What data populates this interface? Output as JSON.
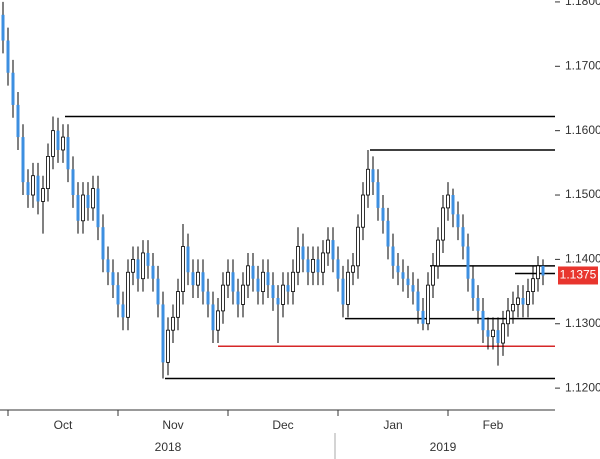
{
  "chart_data": {
    "type": "candlestick",
    "up_color": "#ffffff",
    "down_color": "#3d8fe0",
    "wick_color": "#000000",
    "ylim": [
      1.1166,
      1.1803
    ],
    "yticks": [
      {
        "value": 1.12,
        "label": "1.1200"
      },
      {
        "value": 1.13,
        "label": "1.1300"
      },
      {
        "value": 1.14,
        "label": "1.1400"
      },
      {
        "value": 1.15,
        "label": "1.1500"
      },
      {
        "value": 1.16,
        "label": "1.1600"
      },
      {
        "value": 1.17,
        "label": "1.1700"
      },
      {
        "value": 1.18,
        "label": "1.1800"
      }
    ],
    "years": [
      "2018",
      "2019"
    ],
    "last_price": 1.1375,
    "last_price_color": "#e8352e",
    "levels": [
      {
        "value": 1.1622,
        "color": "#000000"
      },
      {
        "value": 1.157,
        "color": "#000000"
      },
      {
        "value": 1.139,
        "color": "#000000"
      },
      {
        "value": 1.1378,
        "color": "#000000"
      },
      {
        "value": 1.1308,
        "color": "#000000"
      },
      {
        "value": 1.1265,
        "color": "#d62728"
      },
      {
        "value": 1.1215,
        "color": "#000000"
      }
    ],
    "categories": [
      null,
      null,
      null,
      null,
      null,
      null,
      null,
      null,
      null,
      null,
      null,
      null,
      "Oct",
      null,
      null,
      null,
      null,
      null,
      null,
      null,
      null,
      null,
      null,
      null,
      null,
      null,
      null,
      null,
      null,
      null,
      null,
      null,
      null,
      null,
      "Nov",
      null,
      null,
      null,
      null,
      null,
      null,
      null,
      null,
      null,
      null,
      null,
      null,
      null,
      null,
      null,
      null,
      null,
      null,
      null,
      null,
      null,
      "Dec",
      null,
      null,
      null,
      null,
      null,
      null,
      null,
      null,
      null,
      null,
      null,
      null,
      null,
      null,
      null,
      null,
      null,
      null,
      null,
      null,
      null,
      "Jan",
      null,
      null,
      null,
      null,
      null,
      null,
      null,
      null,
      null,
      null,
      null,
      null,
      null,
      null,
      null,
      null,
      null,
      null,
      null,
      "Feb",
      null,
      null,
      null,
      null,
      null,
      null,
      null,
      null,
      null,
      null
    ],
    "ohlc": [
      [
        1.178,
        1.18,
        1.172,
        1.174
      ],
      [
        1.174,
        1.176,
        1.167,
        1.169
      ],
      [
        1.169,
        1.171,
        1.162,
        1.164
      ],
      [
        1.164,
        1.166,
        1.157,
        1.159
      ],
      [
        1.159,
        1.161,
        1.15,
        1.152
      ],
      [
        1.152,
        1.154,
        1.148,
        1.15
      ],
      [
        1.15,
        1.155,
        1.148,
        1.153
      ],
      [
        1.153,
        1.155,
        1.147,
        1.149
      ],
      [
        1.149,
        1.153,
        1.144,
        1.151
      ],
      [
        1.151,
        1.158,
        1.149,
        1.156
      ],
      [
        1.156,
        1.1622,
        1.154,
        1.16
      ],
      [
        1.16,
        1.162,
        1.155,
        1.157
      ],
      [
        1.157,
        1.161,
        1.155,
        1.159
      ],
      [
        1.159,
        1.161,
        1.152,
        1.154
      ],
      [
        1.154,
        1.156,
        1.148,
        1.15
      ],
      [
        1.15,
        1.152,
        1.144,
        1.146
      ],
      [
        1.146,
        1.152,
        1.144,
        1.15
      ],
      [
        1.15,
        1.152,
        1.146,
        1.148
      ],
      [
        1.148,
        1.153,
        1.146,
        1.151
      ],
      [
        1.151,
        1.153,
        1.143,
        1.145
      ],
      [
        1.145,
        1.147,
        1.138,
        1.14
      ],
      [
        1.14,
        1.142,
        1.136,
        1.138
      ],
      [
        1.138,
        1.14,
        1.134,
        1.136
      ],
      [
        1.136,
        1.138,
        1.131,
        1.133
      ],
      [
        1.133,
        1.135,
        1.129,
        1.131
      ],
      [
        1.131,
        1.14,
        1.129,
        1.138
      ],
      [
        1.138,
        1.142,
        1.136,
        1.14
      ],
      [
        1.14,
        1.142,
        1.135,
        1.137
      ],
      [
        1.137,
        1.143,
        1.135,
        1.141
      ],
      [
        1.141,
        1.143,
        1.137,
        1.139
      ],
      [
        1.139,
        1.141,
        1.135,
        1.137
      ],
      [
        1.137,
        1.139,
        1.131,
        1.133
      ],
      [
        1.133,
        1.135,
        1.1215,
        1.124
      ],
      [
        1.124,
        1.131,
        1.122,
        1.129
      ],
      [
        1.129,
        1.133,
        1.127,
        1.131
      ],
      [
        1.131,
        1.137,
        1.129,
        1.135
      ],
      [
        1.135,
        1.1455,
        1.133,
        1.142
      ],
      [
        1.142,
        1.144,
        1.136,
        1.138
      ],
      [
        1.138,
        1.14,
        1.134,
        1.136
      ],
      [
        1.136,
        1.14,
        1.134,
        1.138
      ],
      [
        1.138,
        1.14,
        1.133,
        1.135
      ],
      [
        1.135,
        1.137,
        1.131,
        1.133
      ],
      [
        1.133,
        1.135,
        1.127,
        1.129
      ],
      [
        1.129,
        1.134,
        1.127,
        1.132
      ],
      [
        1.132,
        1.138,
        1.13,
        1.136
      ],
      [
        1.136,
        1.14,
        1.134,
        1.138
      ],
      [
        1.138,
        1.14,
        1.133,
        1.135
      ],
      [
        1.135,
        1.137,
        1.131,
        1.133
      ],
      [
        1.133,
        1.138,
        1.131,
        1.136
      ],
      [
        1.136,
        1.141,
        1.134,
        1.139
      ],
      [
        1.139,
        1.141,
        1.135,
        1.137
      ],
      [
        1.137,
        1.139,
        1.133,
        1.135
      ],
      [
        1.135,
        1.14,
        1.133,
        1.138
      ],
      [
        1.138,
        1.14,
        1.134,
        1.136
      ],
      [
        1.136,
        1.138,
        1.132,
        1.134
      ],
      [
        1.134,
        1.136,
        1.127,
        1.133
      ],
      [
        1.133,
        1.138,
        1.131,
        1.136
      ],
      [
        1.136,
        1.138,
        1.133,
        1.135
      ],
      [
        1.135,
        1.14,
        1.133,
        1.138
      ],
      [
        1.138,
        1.145,
        1.136,
        1.142
      ],
      [
        1.142,
        1.144,
        1.138,
        1.14
      ],
      [
        1.14,
        1.142,
        1.136,
        1.138
      ],
      [
        1.138,
        1.142,
        1.136,
        1.14
      ],
      [
        1.14,
        1.142,
        1.136,
        1.138
      ],
      [
        1.138,
        1.143,
        1.136,
        1.141
      ],
      [
        1.141,
        1.145,
        1.139,
        1.143
      ],
      [
        1.143,
        1.145,
        1.138,
        1.14
      ],
      [
        1.14,
        1.142,
        1.135,
        1.137
      ],
      [
        1.137,
        1.139,
        1.131,
        1.133
      ],
      [
        1.133,
        1.14,
        1.131,
        1.138
      ],
      [
        1.138,
        1.141,
        1.136,
        1.139
      ],
      [
        1.139,
        1.147,
        1.137,
        1.145
      ],
      [
        1.145,
        1.152,
        1.143,
        1.15
      ],
      [
        1.15,
        1.157,
        1.148,
        1.154
      ],
      [
        1.154,
        1.156,
        1.15,
        1.152
      ],
      [
        1.152,
        1.154,
        1.146,
        1.148
      ],
      [
        1.148,
        1.15,
        1.144,
        1.146
      ],
      [
        1.146,
        1.148,
        1.14,
        1.142
      ],
      [
        1.142,
        1.144,
        1.137,
        1.139
      ],
      [
        1.139,
        1.141,
        1.136,
        1.138
      ],
      [
        1.138,
        1.14,
        1.135,
        1.137
      ],
      [
        1.137,
        1.139,
        1.134,
        1.136
      ],
      [
        1.136,
        1.138,
        1.133,
        1.135
      ],
      [
        1.135,
        1.137,
        1.13,
        1.132
      ],
      [
        1.132,
        1.134,
        1.129,
        1.13
      ],
      [
        1.13,
        1.138,
        1.129,
        1.136
      ],
      [
        1.136,
        1.141,
        1.134,
        1.139
      ],
      [
        1.139,
        1.145,
        1.137,
        1.143
      ],
      [
        1.143,
        1.15,
        1.141,
        1.148
      ],
      [
        1.148,
        1.152,
        1.146,
        1.15
      ],
      [
        1.15,
        1.151,
        1.145,
        1.147
      ],
      [
        1.147,
        1.149,
        1.143,
        1.145
      ],
      [
        1.145,
        1.147,
        1.14,
        1.142
      ],
      [
        1.142,
        1.144,
        1.135,
        1.137
      ],
      [
        1.137,
        1.139,
        1.132,
        1.134
      ],
      [
        1.134,
        1.136,
        1.13,
        1.132
      ],
      [
        1.132,
        1.134,
        1.127,
        1.129
      ],
      [
        1.129,
        1.131,
        1.126,
        1.128
      ],
      [
        1.128,
        1.131,
        1.126,
        1.129
      ],
      [
        1.129,
        1.131,
        1.1235,
        1.127
      ],
      [
        1.127,
        1.132,
        1.125,
        1.13
      ],
      [
        1.13,
        1.134,
        1.128,
        1.132
      ],
      [
        1.132,
        1.135,
        1.13,
        1.133
      ],
      [
        1.133,
        1.136,
        1.131,
        1.134
      ],
      [
        1.134,
        1.136,
        1.131,
        1.133
      ],
      [
        1.133,
        1.137,
        1.131,
        1.135
      ],
      [
        1.135,
        1.139,
        1.133,
        1.137
      ],
      [
        1.137,
        1.1405,
        1.135,
        1.139
      ],
      [
        1.139,
        1.14,
        1.136,
        1.1375
      ]
    ]
  }
}
